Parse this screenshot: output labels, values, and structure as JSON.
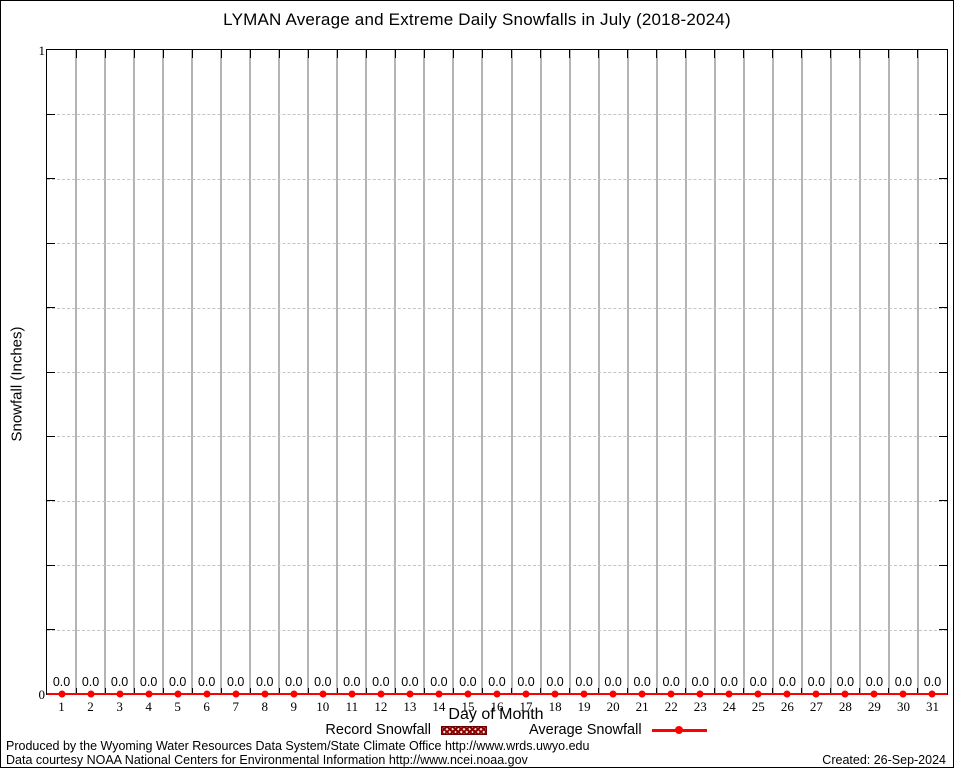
{
  "title": "LYMAN Average and Extreme Daily Snowfalls in July (2018-2024)",
  "chart_data": {
    "type": "line",
    "title": "LYMAN Average and Extreme Daily Snowfalls in July (2018-2024)",
    "xlabel": "Day of Month",
    "ylabel": "Snowfall (Inches)",
    "x": [
      1,
      2,
      3,
      4,
      5,
      6,
      7,
      8,
      9,
      10,
      11,
      12,
      13,
      14,
      15,
      16,
      17,
      18,
      19,
      20,
      21,
      22,
      23,
      24,
      25,
      26,
      27,
      28,
      29,
      30,
      31
    ],
    "series": [
      {
        "name": "Record Snowfall",
        "type": "bar",
        "values": [
          0,
          0,
          0,
          0,
          0,
          0,
          0,
          0,
          0,
          0,
          0,
          0,
          0,
          0,
          0,
          0,
          0,
          0,
          0,
          0,
          0,
          0,
          0,
          0,
          0,
          0,
          0,
          0,
          0,
          0,
          0
        ]
      },
      {
        "name": "Average Snowfall",
        "type": "line",
        "values": [
          0,
          0,
          0,
          0,
          0,
          0,
          0,
          0,
          0,
          0,
          0,
          0,
          0,
          0,
          0,
          0,
          0,
          0,
          0,
          0,
          0,
          0,
          0,
          0,
          0,
          0,
          0,
          0,
          0,
          0,
          0
        ]
      }
    ],
    "point_labels": [
      "0.0",
      "0.0",
      "0.0",
      "0.0",
      "0.0",
      "0.0",
      "0.0",
      "0.0",
      "0.0",
      "0.0",
      "0.0",
      "0.0",
      "0.0",
      "0.0",
      "0.0",
      "0.0",
      "0.0",
      "0.0",
      "0.0",
      "0.0",
      "0.0",
      "0.0",
      "0.0",
      "0.0",
      "0.0",
      "0.0",
      "0.0",
      "0.0",
      "0.0",
      "0.0",
      "0.0"
    ],
    "ylim": [
      0,
      1
    ],
    "ytick_labels": [
      "0",
      "1"
    ],
    "y_minor_step": 0.1,
    "grid": "vertical solid at day boundaries, horizontal dashed at 0.1 steps",
    "legend_position": "bottom-center"
  },
  "legend": {
    "record_label": "Record Snowfall",
    "average_label": "Average Snowfall"
  },
  "colors": {
    "average_line": "#fe0000",
    "record_fill": "#8b0000",
    "vertical_grid": "#b4b4b4",
    "horizontal_grid": "#c4c4c4",
    "axis": "#000000",
    "background": "#ffffff"
  },
  "footer": {
    "line1": "Produced by the Wyoming Water Resources Data System/State Climate Office http://www.wrds.uwyo.edu",
    "line2": "Data courtesy NOAA National Centers for Environmental Information http://www.ncei.noaa.gov",
    "created": "Created: 26-Sep-2024"
  }
}
